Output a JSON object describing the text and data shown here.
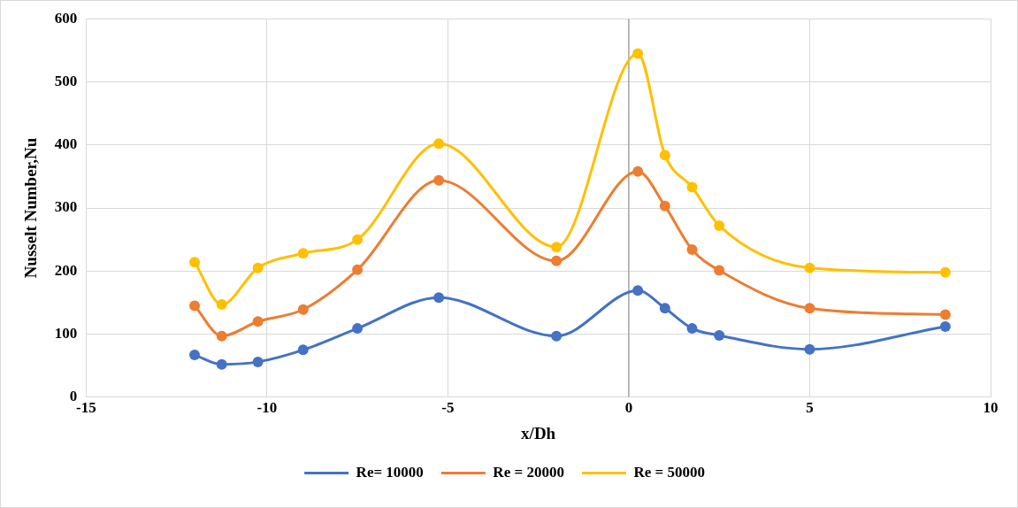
{
  "chart_data": {
    "type": "line",
    "xlabel": "x/Dh",
    "ylabel": "Nusselt Number,Nu",
    "x": [
      -12,
      -11.25,
      -10.25,
      -9,
      -7.5,
      -5.25,
      -2,
      0.25,
      1,
      1.75,
      2.5,
      5,
      8.75
    ],
    "series": [
      {
        "name": "Re= 10000",
        "color": "#4472c4",
        "values": [
          67,
          52,
          56,
          75,
          109,
          158,
          97,
          169,
          141,
          109,
          98,
          76,
          112
        ]
      },
      {
        "name": "Re = 20000",
        "color": "#ed7d31",
        "values": [
          145,
          97,
          120,
          139,
          202,
          344,
          216,
          358,
          303,
          234,
          201,
          141,
          131
        ]
      },
      {
        "name": "Re = 50000",
        "color": "#ffc000",
        "values": [
          214,
          147,
          205,
          228,
          250,
          402,
          238,
          545,
          384,
          333,
          272,
          205,
          198
        ]
      }
    ],
    "xlim": [
      -15,
      10
    ],
    "xticks": [
      -15,
      -10,
      -5,
      0,
      5,
      10
    ],
    "ylim": [
      0,
      600
    ],
    "yticks": [
      0,
      100,
      200,
      300,
      400,
      500,
      600
    ],
    "ref_lines": [
      {
        "axis": "x",
        "value": 0,
        "color": "#a6a6a6"
      }
    ],
    "grid": true,
    "legend": "bottom",
    "marker": "circle",
    "line_style": "solid"
  }
}
